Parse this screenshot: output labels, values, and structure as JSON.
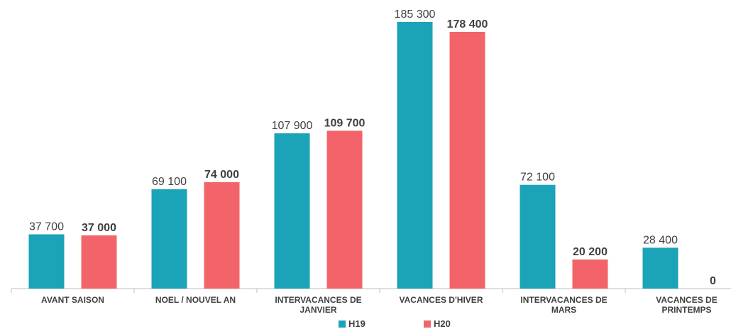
{
  "chart_data": {
    "type": "bar",
    "categories": [
      "AVANT SAISON",
      "NOEL / NOUVEL AN",
      "INTERVACANCES DE JANVIER",
      "VACANCES D'HIVER",
      "INTERVACANCES DE MARS",
      "VACANCES DE PRINTEMPS"
    ],
    "series": [
      {
        "name": "H19",
        "color": "#1ba3b8",
        "values": [
          37700,
          69100,
          107900,
          185300,
          72100,
          28400
        ],
        "value_labels": [
          "37 700",
          "69 100",
          "107 900",
          "185 300",
          "72 100",
          "28 400"
        ]
      },
      {
        "name": "H20",
        "color": "#f2646a",
        "values": [
          37000,
          74000,
          109700,
          178400,
          20200,
          0
        ],
        "value_labels": [
          "37 000",
          "74 000",
          "109 700",
          "178 400",
          "20 200",
          "0"
        ]
      }
    ],
    "legend": "bottom"
  }
}
